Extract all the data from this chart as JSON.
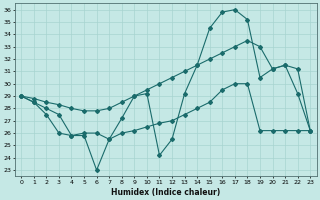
{
  "xlabel": "Humidex (Indice chaleur)",
  "bg_color": "#c5e8e5",
  "line_color": "#1a6b6b",
  "grid_color": "#a8d4d0",
  "xlim": [
    -0.5,
    23.5
  ],
  "ylim": [
    22.5,
    36.5
  ],
  "yticks": [
    23,
    24,
    25,
    26,
    27,
    28,
    29,
    30,
    31,
    32,
    33,
    34,
    35,
    36
  ],
  "xticks": [
    0,
    1,
    2,
    3,
    4,
    5,
    6,
    7,
    8,
    9,
    10,
    11,
    12,
    13,
    14,
    15,
    16,
    17,
    18,
    19,
    20,
    21,
    22,
    23
  ],
  "series_jagged": [
    29.0,
    28.5,
    28.0,
    27.5,
    25.8,
    25.8,
    23.0,
    25.5,
    27.2,
    29.0,
    29.2,
    24.2,
    25.5,
    29.2,
    31.5,
    34.5,
    35.8,
    36.0,
    35.2,
    30.5,
    31.2,
    31.5,
    29.2,
    26.2
  ],
  "series_diagonal": [
    29.0,
    28.8,
    28.5,
    28.3,
    28.0,
    27.8,
    27.8,
    28.0,
    28.5,
    29.0,
    29.5,
    30.0,
    30.5,
    31.0,
    31.5,
    32.0,
    32.5,
    33.0,
    33.5,
    33.0,
    31.2,
    31.5,
    31.2,
    26.2
  ],
  "series_flat": [
    29.0,
    28.5,
    27.5,
    26.0,
    25.8,
    26.0,
    26.0,
    25.5,
    26.0,
    26.2,
    26.5,
    26.8,
    27.0,
    27.5,
    28.0,
    28.5,
    29.5,
    30.0,
    30.0,
    26.2,
    26.2,
    26.2,
    26.2,
    26.2
  ]
}
